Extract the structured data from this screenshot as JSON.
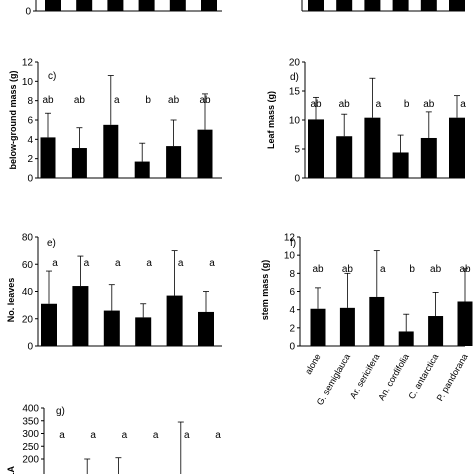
{
  "chart_data": [
    {
      "type": "bar",
      "panel_label": "",
      "ylabel": "",
      "ylim": [
        0,
        2
      ],
      "yticks": [
        0
      ],
      "categories": [
        "alone",
        "G. semiglauca",
        "Ar. sericifera",
        "An. cordifolia",
        "C. antarctica",
        "P. pandorana"
      ],
      "values": [
        2,
        2,
        2,
        2,
        2,
        2
      ],
      "errors": [
        0,
        0,
        0,
        0,
        0,
        0
      ],
      "letters": [
        "",
        "",
        "",
        "",
        "",
        ""
      ]
    },
    {
      "type": "bar",
      "panel_label": "",
      "ylabel": "",
      "ylim": [
        0,
        2
      ],
      "yticks": [],
      "categories": [
        "alone",
        "G. semiglauca",
        "Ar. sericifera",
        "An. cordifolia",
        "C. antarctica",
        "P. pandorana"
      ],
      "values": [
        2,
        2,
        2,
        2,
        2,
        2
      ],
      "errors": [
        0,
        0,
        0,
        0,
        0,
        0
      ],
      "letters": [
        "",
        "",
        "",
        "",
        "",
        ""
      ]
    },
    {
      "type": "bar",
      "panel_label": "c)",
      "ylabel": "below-ground mass (g)",
      "ylim": [
        0,
        12
      ],
      "yticks": [
        0,
        2,
        4,
        6,
        8,
        10,
        12
      ],
      "categories": [
        "alone",
        "G. semiglauca",
        "Ar. sericifera",
        "An. cordifolia",
        "C. antarctica",
        "P. pandorana"
      ],
      "values": [
        4.2,
        3.1,
        5.5,
        1.7,
        3.3,
        5.0
      ],
      "errors": [
        2.5,
        2.1,
        5.1,
        1.9,
        2.7,
        3.7
      ],
      "letters": [
        "ab",
        "ab",
        "a",
        "b",
        "ab",
        "ab"
      ]
    },
    {
      "type": "bar",
      "panel_label": "d)",
      "ylabel": "Leaf mass (g)",
      "ylim": [
        0,
        20
      ],
      "yticks": [
        0,
        5,
        10,
        15,
        20
      ],
      "categories": [
        "alone",
        "G. semiglauca",
        "Ar. sericifera",
        "An. cordifolia",
        "C. antarctica",
        "P. pandorana"
      ],
      "values": [
        10.1,
        7.2,
        10.4,
        4.4,
        6.9,
        10.4
      ],
      "errors": [
        3.8,
        3.8,
        6.8,
        3.0,
        4.5,
        3.8
      ],
      "letters": [
        "ab",
        "ab",
        "a",
        "b",
        "ab",
        "a"
      ]
    },
    {
      "type": "bar",
      "panel_label": "e)",
      "ylabel": "No. leaves",
      "ylim": [
        0,
        80
      ],
      "yticks": [
        0,
        20,
        40,
        60,
        80
      ],
      "categories": [
        "alone",
        "G. semiglauca",
        "Ar. sericifera",
        "An. cordifolia",
        "C. antarctica",
        "P. pandorana"
      ],
      "values": [
        31,
        44,
        26,
        21,
        37,
        25
      ],
      "errors": [
        24,
        22,
        19,
        10,
        33,
        15
      ],
      "letters": [
        "a",
        "a",
        "a",
        "a",
        "a",
        "a"
      ]
    },
    {
      "type": "bar",
      "panel_label": "f)",
      "ylabel": "stem mass (g)",
      "ylim": [
        0,
        12
      ],
      "yticks": [
        0,
        2,
        4,
        6,
        8,
        10,
        12
      ],
      "categories": [
        "alone",
        "G. semiglauca",
        "Ar. sericifera",
        "An. cordifolia",
        "C. antarctica",
        "P. pandorana"
      ],
      "values": [
        4.1,
        4.2,
        5.4,
        1.6,
        3.3,
        4.9
      ],
      "errors": [
        2.3,
        3.8,
        5.1,
        1.9,
        2.6,
        3.6
      ],
      "letters": [
        "ab",
        "ab",
        "a",
        "b",
        "ab",
        "ab"
      ]
    },
    {
      "type": "bar",
      "panel_label": "g)",
      "ylabel": "LA",
      "ylim": [
        0,
        400
      ],
      "yticks": [
        200,
        250,
        300,
        350,
        400
      ],
      "categories": [
        "alone",
        "G. semiglauca",
        "Ar. sericifera",
        "An. cordifolia",
        "C. antarctica",
        "P. pandorana"
      ],
      "values": [
        0,
        0,
        0,
        0,
        0,
        0
      ],
      "errors": [
        0,
        200,
        205,
        0,
        345,
        0
      ],
      "letters": [
        "a",
        "a",
        "a",
        "a",
        "a",
        "a"
      ]
    }
  ]
}
